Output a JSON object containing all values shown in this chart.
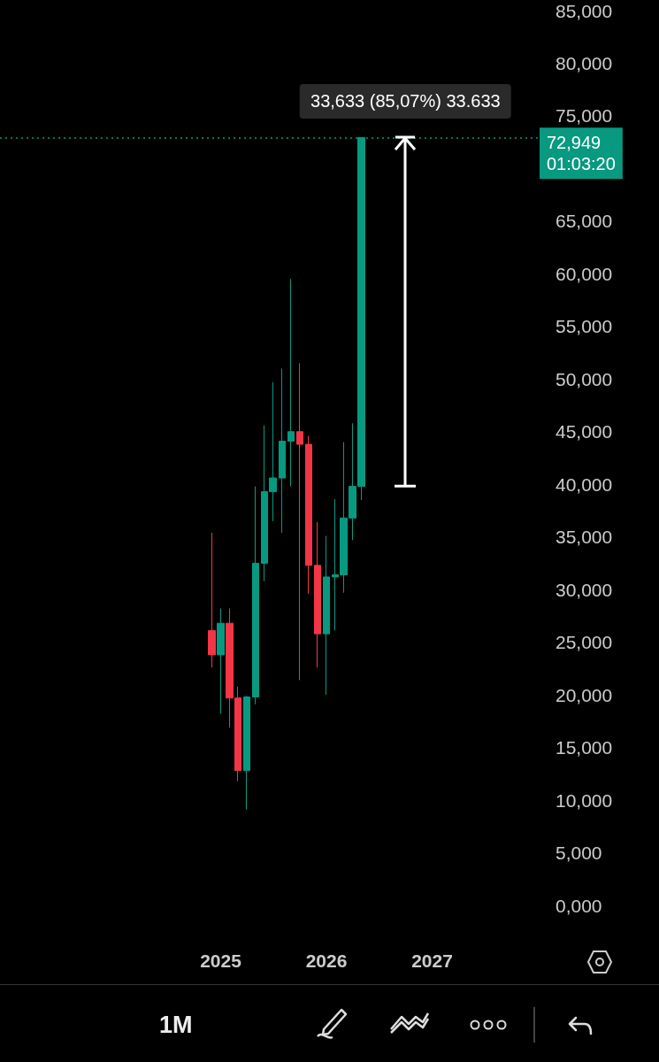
{
  "chart_data": {
    "type": "candlestick",
    "x": [
      "2024-12",
      "2025-01",
      "2025-02",
      "2025-03",
      "2025-04",
      "2025-05",
      "2025-06",
      "2025-07",
      "2025-08",
      "2025-09",
      "2025-10",
      "2025-11",
      "2025-12",
      "2026-01",
      "2026-02",
      "2026-03",
      "2026-04",
      "2026-05"
    ],
    "ohlc": [
      [
        26.1,
        35.4,
        22.6,
        23.8
      ],
      [
        23.8,
        28.2,
        18.2,
        26.8
      ],
      [
        26.8,
        28.2,
        16.9,
        19.7
      ],
      [
        19.7,
        20.8,
        11.8,
        12.8
      ],
      [
        12.8,
        19.9,
        9.1,
        19.8
      ],
      [
        19.8,
        39.8,
        19.1,
        32.5
      ],
      [
        32.5,
        45.6,
        30.8,
        39.3
      ],
      [
        39.3,
        49.7,
        36.5,
        40.6
      ],
      [
        40.6,
        51.0,
        35.4,
        44.1
      ],
      [
        44.1,
        59.5,
        39.8,
        45.0
      ],
      [
        45.0,
        51.5,
        21.4,
        43.8
      ],
      [
        43.8,
        44.6,
        29.6,
        32.3
      ],
      [
        32.3,
        36.4,
        22.6,
        25.8
      ],
      [
        25.8,
        35.1,
        20.0,
        31.2
      ],
      [
        31.2,
        38.6,
        26.1,
        31.4
      ],
      [
        31.4,
        44.0,
        29.7,
        36.8
      ],
      [
        36.8,
        45.8,
        34.7,
        39.8
      ],
      [
        39.8,
        72.949,
        38.5,
        72.949
      ]
    ],
    "colors": [
      "#f23645",
      "#089981",
      "#f23645",
      "#f23645",
      "#089981",
      "#089981",
      "#089981",
      "#089981",
      "#089981",
      "#089981",
      "#f23645",
      "#f23645",
      "#f23645",
      "#089981",
      "#089981",
      "#089981",
      "#089981",
      "#089981"
    ],
    "xlim": [
      "2022-12",
      "2028-01"
    ],
    "xticks": [
      {
        "value": "2025",
        "label": "2025"
      },
      {
        "value": "2026",
        "label": "2026"
      },
      {
        "value": "2027",
        "label": "2027"
      }
    ],
    "ylim": [
      0,
      85
    ],
    "yticks": [
      {
        "value": 0,
        "label": "0,000"
      },
      {
        "value": 5,
        "label": "5,000"
      },
      {
        "value": 10,
        "label": "10,000"
      },
      {
        "value": 15,
        "label": "15,000"
      },
      {
        "value": 20,
        "label": "20,000"
      },
      {
        "value": 25,
        "label": "25,000"
      },
      {
        "value": 30,
        "label": "30,000"
      },
      {
        "value": 35,
        "label": "35,000"
      },
      {
        "value": 40,
        "label": "40,000"
      },
      {
        "value": 45,
        "label": "45,000"
      },
      {
        "value": 50,
        "label": "50,000"
      },
      {
        "value": 55,
        "label": "55,000"
      },
      {
        "value": 60,
        "label": "60,000"
      },
      {
        "value": 65,
        "label": "65,000"
      },
      {
        "value": 75,
        "label": "75,000"
      },
      {
        "value": 80,
        "label": "80,000"
      },
      {
        "value": 85,
        "label": "85,000"
      }
    ],
    "ref_lines": [
      {
        "axis": "y",
        "value": 72.949,
        "label": "72,949\n01:03:20",
        "color": "#089981",
        "line_style": "dotted"
      }
    ],
    "annotations": [
      {
        "text": "33,633 (85,07%) 33.633",
        "x": "2026-10",
        "y": 72.949
      },
      "1M"
    ],
    "grid": false
  }
}
